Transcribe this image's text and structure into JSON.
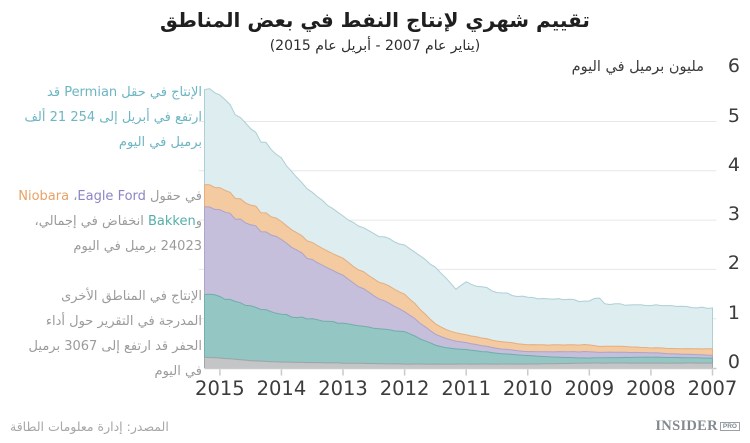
{
  "title": "تقييم شهري لإنتاج النفط في بعض المناطق",
  "subtitle": "(يناير عام 2007 - أبريل عام 2015)",
  "y_axis": {
    "unit_label": "مليون برميل في اليوم",
    "ticks": [
      6,
      5,
      4,
      3,
      2,
      1,
      0
    ]
  },
  "x_axis": {
    "years": [
      2015,
      2014,
      2013,
      2012,
      2011,
      2010,
      2009,
      2008,
      2007
    ]
  },
  "annotations": [
    {
      "name": "permian",
      "color": "#6db5c2",
      "lines": [
        [
          {
            "t": "الإنتاج في حقل "
          },
          {
            "t": "Permian"
          },
          {
            "t": " قد"
          }
        ],
        [
          {
            "t": "ارتفع في أبريل إلى 254 21 ألف"
          }
        ],
        [
          {
            "t": "برميل في اليوم"
          }
        ]
      ]
    },
    {
      "name": "shale-fields",
      "color": "#9b9b9b",
      "lines": [
        [
          {
            "t": "في حقول ",
            "c": "#9b9b9b"
          },
          {
            "t": "Eagle Ford",
            "c": "#8c85c5"
          },
          {
            "t": "، ",
            "c": "#9b9b9b"
          },
          {
            "t": "Niobara",
            "c": "#e8a266"
          }
        ],
        [
          {
            "t": "و",
            "c": "#9b9b9b"
          },
          {
            "t": "Bakken",
            "c": "#55aeaa"
          },
          {
            "t": " انخفاض في إجمالي،",
            "c": "#9b9b9b"
          }
        ],
        [
          {
            "t": "24023 برميل في اليوم",
            "c": "#9b9b9b"
          }
        ]
      ]
    },
    {
      "name": "other-regions",
      "color": "#9b9b9b",
      "lines": [
        [
          {
            "t": "الإنتاج في المناطق الأخرى"
          }
        ],
        [
          {
            "t": "المدرجة في التقرير حول أداء"
          }
        ],
        [
          {
            "t": "الحفر قد ارتفع إلى 3067 برميل"
          }
        ],
        [
          {
            "t": "في اليوم"
          }
        ]
      ]
    }
  ],
  "source": "المصدر: إدارة معلومات الطاقة",
  "logo": {
    "name": "INSIDER",
    "badge": "PRO"
  },
  "chart_data": {
    "type": "area",
    "stacked": true,
    "x_reversed": true,
    "title": "تقييم شهري لإنتاج النفط في بعض المناطق",
    "ylabel": "مليون برميل في اليوم",
    "ylim": [
      0,
      6
    ],
    "grid": "horizontal",
    "x_unit": "year",
    "x": [
      2007,
      2007.5,
      2008,
      2008.5,
      2008.74,
      2008.85,
      2009,
      2009.5,
      2010,
      2010.5,
      2011,
      2011.18,
      2011.3,
      2011.5,
      2012,
      2012.5,
      2013,
      2013.5,
      2014,
      2014.5,
      2015,
      2015.25
    ],
    "series": [
      {
        "name": "other-regions",
        "label": "مناطق أخرى",
        "color": "#c4c5c6",
        "edge": "#9b9ea0",
        "values": [
          0.1,
          0.1,
          0.1,
          0.1,
          0.1,
          0.1,
          0.1,
          0.09,
          0.08,
          0.08,
          0.08,
          0.08,
          0.08,
          0.08,
          0.08,
          0.09,
          0.1,
          0.11,
          0.12,
          0.15,
          0.2,
          0.22
        ]
      },
      {
        "name": "bakken",
        "label": "Bakken",
        "color": "#94c6c3",
        "edge": "#68aaa7",
        "values": [
          0.1,
          0.11,
          0.12,
          0.11,
          0.11,
          0.11,
          0.1,
          0.13,
          0.17,
          0.22,
          0.29,
          0.31,
          0.33,
          0.38,
          0.65,
          0.72,
          0.8,
          0.88,
          0.96,
          1.1,
          1.25,
          1.27
        ]
      },
      {
        "name": "eagle-ford",
        "label": "Eagle Ford",
        "color": "#c6bfdc",
        "edge": "#a79fc9",
        "values": [
          0.06,
          0.07,
          0.09,
          0.11,
          0.11,
          0.11,
          0.13,
          0.11,
          0.08,
          0.1,
          0.14,
          0.16,
          0.18,
          0.22,
          0.41,
          0.65,
          0.96,
          1.2,
          1.51,
          1.65,
          1.75,
          1.78
        ]
      },
      {
        "name": "niobara",
        "label": "Niobara",
        "color": "#f4caa1",
        "edge": "#e2a878",
        "values": [
          0.13,
          0.11,
          0.1,
          0.12,
          0.12,
          0.12,
          0.14,
          0.14,
          0.14,
          0.15,
          0.16,
          0.17,
          0.18,
          0.21,
          0.35,
          0.34,
          0.34,
          0.35,
          0.36,
          0.4,
          0.45,
          0.45
        ]
      },
      {
        "name": "permian",
        "label": "Permian",
        "color": "#ddedf0",
        "edge": "#a5cbd2",
        "values": [
          0.83,
          0.85,
          0.86,
          0.85,
          0.84,
          1.0,
          0.88,
          0.92,
          0.95,
          1.0,
          1.06,
          0.87,
          1.03,
          1.15,
          1.01,
          0.9,
          0.87,
          1.0,
          1.27,
          1.55,
          1.9,
          1.93
        ]
      }
    ]
  }
}
